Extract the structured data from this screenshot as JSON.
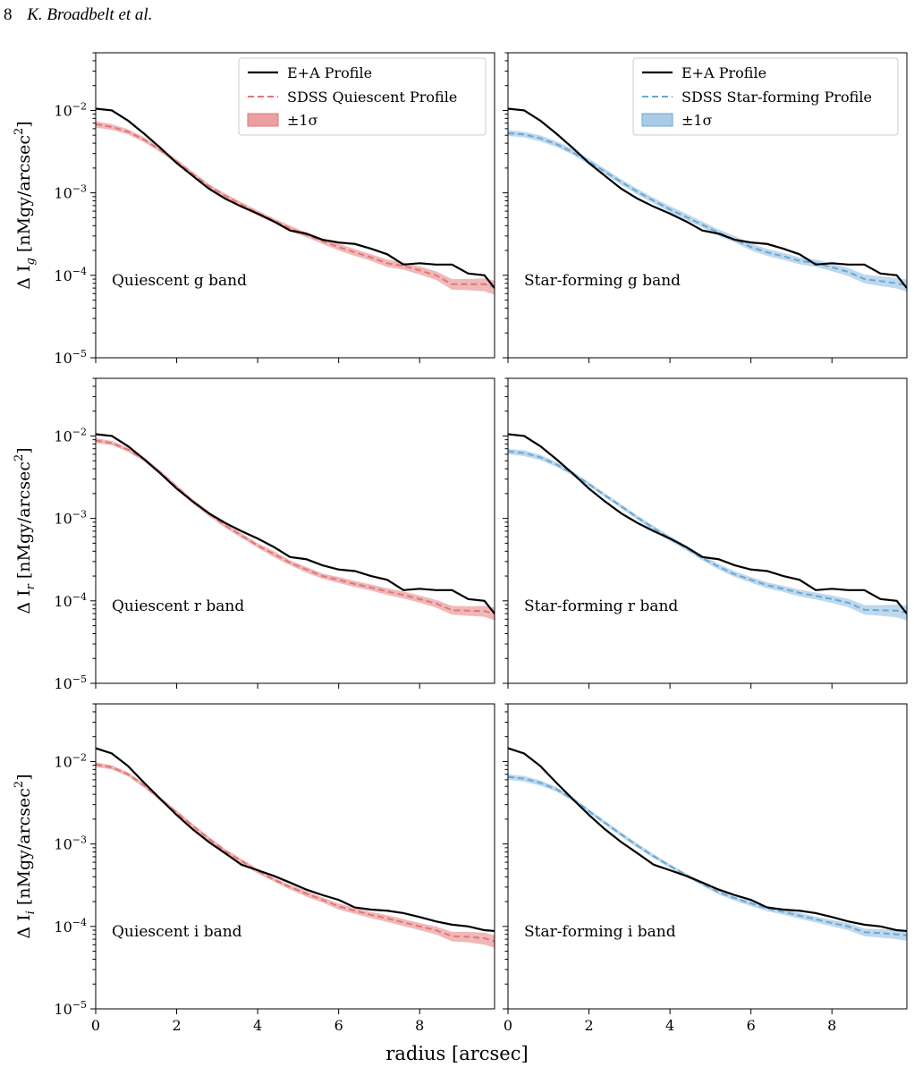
{
  "header": {
    "page_number": "8",
    "authors": "K. Broadbelt et al."
  },
  "figure": {
    "xlabel": "radius [arcsec]",
    "x_ticks": [
      0,
      2,
      4,
      6,
      8
    ],
    "xlim": [
      0,
      9.85
    ],
    "y_scale": "log",
    "ylim": [
      1e-05,
      0.05
    ],
    "y_ticks": [
      {
        "value": 1e-05,
        "base": "10",
        "exp": "−5"
      },
      {
        "value": 0.0001,
        "base": "10",
        "exp": "−4"
      },
      {
        "value": 0.001,
        "base": "10",
        "exp": "−3"
      },
      {
        "value": 0.01,
        "base": "10",
        "exp": "−2"
      }
    ],
    "row_ylabels": [
      {
        "prefix": "Δ I",
        "sub": "g",
        "suffix": " [nMgy/arcsec",
        "sup": "2",
        "end": "]"
      },
      {
        "prefix": "Δ I",
        "sub": "r",
        "suffix": " [nMgy/arcsec",
        "sup": "2",
        "end": "]"
      },
      {
        "prefix": "Δ I",
        "sub": "i",
        "suffix": " [nMgy/arcsec",
        "sup": "2",
        "end": "]"
      }
    ],
    "legends": [
      {
        "placement": "top-right",
        "entries": [
          "E+A Profile",
          "SDSS Quiescent Profile",
          "±1σ"
        ]
      },
      {
        "placement": "top-right",
        "entries": [
          "E+A Profile",
          "SDSS Star-forming Profile",
          "±1σ"
        ]
      }
    ],
    "colors": {
      "ea": "#000000",
      "quiescent": "#e07777",
      "quiescent_band": "#eba0a0",
      "starforming": "#6ba8d0",
      "starforming_band": "#a8cbe8"
    }
  },
  "chart_data": [
    {
      "type": "line",
      "annotation": "Quiescent g band",
      "row": 0,
      "col": 0,
      "x": [
        0,
        0.4,
        0.8,
        1.2,
        1.6,
        2.0,
        2.4,
        2.8,
        3.2,
        3.6,
        4.0,
        4.4,
        4.8,
        5.2,
        5.6,
        6.0,
        6.4,
        6.8,
        7.2,
        7.6,
        8.0,
        8.4,
        8.8,
        9.2,
        9.6,
        9.85
      ],
      "series": [
        {
          "name": "E+A Profile",
          "values": [
            0.0105,
            0.01,
            0.0075,
            0.0052,
            0.0035,
            0.0023,
            0.0016,
            0.00112,
            0.00085,
            0.00068,
            0.00056,
            0.00045,
            0.00035,
            0.00032,
            0.00027,
            0.00025,
            0.00024,
            0.00021,
            0.00018,
            0.000135,
            0.00014,
            0.000135,
            0.000135,
            0.000105,
            0.0001,
            7e-05
          ]
        },
        {
          "name": "SDSS Quiescent Profile",
          "values": [
            0.0068,
            0.0063,
            0.0055,
            0.0044,
            0.0033,
            0.0024,
            0.0017,
            0.0012,
            0.00092,
            0.00072,
            0.00057,
            0.00046,
            0.00037,
            0.00031,
            0.00026,
            0.00022,
            0.00019,
            0.000165,
            0.00014,
            0.00013,
            0.000115,
            0.0001,
            7.8e-05,
            7.8e-05,
            7.8e-05,
            7.2e-05
          ],
          "lower": [
            0.0062,
            0.0058,
            0.0051,
            0.0041,
            0.0031,
            0.00225,
            0.0016,
            0.00113,
            0.00086,
            0.00067,
            0.00053,
            0.00043,
            0.00034,
            0.00029,
            0.00024,
            0.0002,
            0.000172,
            0.00015,
            0.000126,
            0.000117,
            0.000102,
            8.8e-05,
            6.7e-05,
            6.6e-05,
            6.4e-05,
            5.8e-05
          ],
          "upper": [
            0.0074,
            0.0068,
            0.0059,
            0.0047,
            0.0035,
            0.00255,
            0.0018,
            0.00127,
            0.00098,
            0.00077,
            0.00061,
            0.00049,
            0.0004,
            0.00033,
            0.00028,
            0.000242,
            0.000208,
            0.00018,
            0.000155,
            0.000143,
            0.000128,
            0.000112,
            9e-05,
            9e-05,
            9.2e-05,
            8.6e-05
          ]
        }
      ]
    },
    {
      "type": "line",
      "annotation": "Star-forming g band",
      "row": 0,
      "col": 1,
      "x": [
        0,
        0.4,
        0.8,
        1.2,
        1.6,
        2.0,
        2.4,
        2.8,
        3.2,
        3.6,
        4.0,
        4.4,
        4.8,
        5.2,
        5.6,
        6.0,
        6.4,
        6.8,
        7.2,
        7.6,
        8.0,
        8.4,
        8.8,
        9.2,
        9.6,
        9.85
      ],
      "series": [
        {
          "name": "E+A Profile",
          "values": [
            0.0105,
            0.01,
            0.0075,
            0.0052,
            0.0035,
            0.0023,
            0.0016,
            0.00112,
            0.00085,
            0.00068,
            0.00056,
            0.00045,
            0.00035,
            0.00032,
            0.00027,
            0.00025,
            0.00024,
            0.00021,
            0.00018,
            0.000135,
            0.00014,
            0.000135,
            0.000135,
            0.000105,
            0.0001,
            7e-05
          ]
        },
        {
          "name": "SDSS Star-forming Profile",
          "values": [
            0.0053,
            0.0051,
            0.0046,
            0.0039,
            0.0031,
            0.0024,
            0.0018,
            0.00135,
            0.00103,
            0.0008,
            0.00063,
            0.00051,
            0.00041,
            0.00033,
            0.00027,
            0.00022,
            0.00019,
            0.00017,
            0.00015,
            0.00014,
            0.000125,
            0.00011,
            9e-05,
            8.5e-05,
            8e-05,
            7.5e-05
          ],
          "lower": [
            0.0049,
            0.0047,
            0.0042,
            0.0036,
            0.0029,
            0.0022,
            0.00167,
            0.00125,
            0.00095,
            0.00074,
            0.00058,
            0.00047,
            0.00038,
            0.0003,
            0.00025,
            0.0002,
            0.000172,
            0.000154,
            0.000136,
            0.000126,
            0.000112,
            9.8e-05,
            8e-05,
            7.4e-05,
            6.9e-05,
            6.3e-05
          ],
          "upper": [
            0.0058,
            0.0055,
            0.005,
            0.0042,
            0.0034,
            0.0026,
            0.00195,
            0.00146,
            0.00112,
            0.00087,
            0.00069,
            0.00056,
            0.00045,
            0.00036,
            0.0003,
            0.000242,
            0.000209,
            0.000187,
            0.000165,
            0.000155,
            0.000139,
            0.000123,
            0.000102,
            9.7e-05,
            9.3e-05,
            8.9e-05
          ]
        }
      ]
    },
    {
      "type": "line",
      "annotation": "Quiescent r band",
      "row": 1,
      "col": 0,
      "x": [
        0,
        0.4,
        0.8,
        1.2,
        1.6,
        2.0,
        2.4,
        2.8,
        3.2,
        3.6,
        4.0,
        4.4,
        4.8,
        5.2,
        5.6,
        6.0,
        6.4,
        6.8,
        7.2,
        7.6,
        8.0,
        8.4,
        8.8,
        9.2,
        9.6,
        9.85
      ],
      "series": [
        {
          "name": "E+A Profile",
          "values": [
            0.0105,
            0.01,
            0.0075,
            0.0052,
            0.0035,
            0.0023,
            0.0016,
            0.00115,
            0.00088,
            0.0007,
            0.00057,
            0.00045,
            0.00034,
            0.00032,
            0.00027,
            0.00024,
            0.00023,
            0.0002,
            0.00018,
            0.000135,
            0.00014,
            0.000135,
            0.000135,
            0.000105,
            0.0001,
            7e-05
          ]
        },
        {
          "name": "SDSS Quiescent Profile",
          "values": [
            0.0088,
            0.0082,
            0.0068,
            0.0052,
            0.0036,
            0.0024,
            0.0016,
            0.00113,
            0.00082,
            0.00062,
            0.00047,
            0.00037,
            0.00029,
            0.00024,
            0.0002,
            0.00018,
            0.00016,
            0.000145,
            0.00013,
            0.000118,
            0.000105,
            9.3e-05,
            7.7e-05,
            7.6e-05,
            7.5e-05,
            7e-05
          ],
          "lower": [
            0.0082,
            0.0077,
            0.0064,
            0.0049,
            0.0034,
            0.00226,
            0.0015,
            0.00106,
            0.00077,
            0.00058,
            0.00044,
            0.00034,
            0.00027,
            0.00022,
            0.000185,
            0.000165,
            0.000147,
            0.000133,
            0.000118,
            0.000107,
            9.5e-05,
            8.3e-05,
            6.8e-05,
            6.6e-05,
            6.4e-05,
            5.8e-05
          ],
          "upper": [
            0.0094,
            0.0087,
            0.0072,
            0.0055,
            0.0038,
            0.00255,
            0.0017,
            0.0012,
            0.00087,
            0.00066,
            0.0005,
            0.0004,
            0.00031,
            0.000258,
            0.000215,
            0.000195,
            0.000174,
            0.000158,
            0.000142,
            0.00013,
            0.000116,
            0.000103,
            8.7e-05,
            8.6e-05,
            8.7e-05,
            8.3e-05
          ]
        }
      ]
    },
    {
      "type": "line",
      "annotation": "Star-forming r band",
      "row": 1,
      "col": 1,
      "x": [
        0,
        0.4,
        0.8,
        1.2,
        1.6,
        2.0,
        2.4,
        2.8,
        3.2,
        3.6,
        4.0,
        4.4,
        4.8,
        5.2,
        5.6,
        6.0,
        6.4,
        6.8,
        7.2,
        7.6,
        8.0,
        8.4,
        8.8,
        9.2,
        9.6,
        9.85
      ],
      "series": [
        {
          "name": "E+A Profile",
          "values": [
            0.0105,
            0.01,
            0.0075,
            0.0052,
            0.0035,
            0.0023,
            0.0016,
            0.00115,
            0.00088,
            0.0007,
            0.00057,
            0.00045,
            0.00034,
            0.00032,
            0.00027,
            0.00024,
            0.00023,
            0.0002,
            0.00018,
            0.000135,
            0.00014,
            0.000135,
            0.000135,
            0.000105,
            0.0001,
            7e-05
          ]
        },
        {
          "name": "SDSS Star-forming Profile",
          "values": [
            0.0065,
            0.0062,
            0.0055,
            0.0045,
            0.0035,
            0.0026,
            0.0019,
            0.0014,
            0.00102,
            0.00076,
            0.00057,
            0.00044,
            0.00033,
            0.00026,
            0.00021,
            0.00018,
            0.000155,
            0.00014,
            0.000125,
            0.000115,
            0.000105,
            9.5e-05,
            7.8e-05,
            7.7e-05,
            7.6e-05,
            7.2e-05
          ],
          "lower": [
            0.006,
            0.0057,
            0.0051,
            0.0042,
            0.0033,
            0.00245,
            0.0018,
            0.00132,
            0.00096,
            0.00071,
            0.00053,
            0.00041,
            0.00031,
            0.00024,
            0.000195,
            0.000166,
            0.000142,
            0.000128,
            0.000113,
            0.000104,
            9.4e-05,
            8.4e-05,
            6.8e-05,
            6.6e-05,
            6.3e-05,
            5.8e-05
          ],
          "upper": [
            0.007,
            0.0067,
            0.0059,
            0.0048,
            0.0037,
            0.00275,
            0.002,
            0.00148,
            0.00108,
            0.00081,
            0.00061,
            0.00047,
            0.00036,
            0.00028,
            0.000228,
            0.000195,
            0.000168,
            0.000152,
            0.000137,
            0.000126,
            0.000116,
            0.000106,
            8.9e-05,
            8.9e-05,
            9e-05,
            8.7e-05
          ]
        }
      ]
    },
    {
      "type": "line",
      "annotation": "Quiescent i band",
      "row": 2,
      "col": 0,
      "x": [
        0,
        0.4,
        0.8,
        1.2,
        1.6,
        2.0,
        2.4,
        2.8,
        3.2,
        3.6,
        4.0,
        4.4,
        4.8,
        5.2,
        5.6,
        6.0,
        6.4,
        6.8,
        7.2,
        7.6,
        8.0,
        8.4,
        8.8,
        9.2,
        9.6,
        9.85
      ],
      "series": [
        {
          "name": "E+A Profile",
          "values": [
            0.0145,
            0.0125,
            0.0088,
            0.0055,
            0.0035,
            0.00225,
            0.0015,
            0.00105,
            0.00077,
            0.00056,
            0.00048,
            0.00041,
            0.00034,
            0.00028,
            0.00024,
            0.00021,
            0.00017,
            0.00016,
            0.000155,
            0.000145,
            0.00013,
            0.000115,
            0.000105,
            0.0001,
            9e-05,
            8.8e-05
          ]
        },
        {
          "name": "SDSS Quiescent Profile",
          "values": [
            0.0092,
            0.0085,
            0.007,
            0.0051,
            0.0035,
            0.0024,
            0.00165,
            0.00115,
            0.00082,
            0.00062,
            0.00047,
            0.00037,
            0.0003,
            0.00025,
            0.00021,
            0.000175,
            0.000155,
            0.000138,
            0.000125,
            0.000112,
            0.0001,
            9e-05,
            7.6e-05,
            7.5e-05,
            7.2e-05,
            6.6e-05
          ],
          "lower": [
            0.0086,
            0.008,
            0.0066,
            0.0048,
            0.0033,
            0.00226,
            0.00155,
            0.00108,
            0.00077,
            0.00058,
            0.00044,
            0.00035,
            0.00028,
            0.00023,
            0.000195,
            0.00016,
            0.000142,
            0.000126,
            0.000113,
            0.000101,
            9e-05,
            8e-05,
            6.6e-05,
            6.4e-05,
            6e-05,
            5.5e-05
          ],
          "upper": [
            0.0098,
            0.009,
            0.0074,
            0.0054,
            0.0037,
            0.00255,
            0.00175,
            0.00122,
            0.00087,
            0.00066,
            0.0005,
            0.00039,
            0.00032,
            0.00027,
            0.000225,
            0.00019,
            0.000168,
            0.00015,
            0.000137,
            0.000123,
            0.00011,
            0.0001,
            8.6e-05,
            8.6e-05,
            8.4e-05,
            7.8e-05
          ]
        }
      ]
    },
    {
      "type": "line",
      "annotation": "Star-forming i band",
      "row": 2,
      "col": 1,
      "x": [
        0,
        0.4,
        0.8,
        1.2,
        1.6,
        2.0,
        2.4,
        2.8,
        3.2,
        3.6,
        4.0,
        4.4,
        4.8,
        5.2,
        5.6,
        6.0,
        6.4,
        6.8,
        7.2,
        7.6,
        8.0,
        8.4,
        8.8,
        9.2,
        9.6,
        9.85
      ],
      "series": [
        {
          "name": "E+A Profile",
          "values": [
            0.0145,
            0.0125,
            0.0088,
            0.0055,
            0.0035,
            0.00225,
            0.0015,
            0.00105,
            0.00077,
            0.00056,
            0.00048,
            0.00041,
            0.00034,
            0.00028,
            0.00024,
            0.00021,
            0.00017,
            0.00016,
            0.000155,
            0.000145,
            0.00013,
            0.000115,
            0.000105,
            0.0001,
            9e-05,
            8.8e-05
          ]
        },
        {
          "name": "SDSS Star-forming Profile",
          "values": [
            0.0065,
            0.0062,
            0.0055,
            0.0046,
            0.0035,
            0.0025,
            0.0018,
            0.0013,
            0.00095,
            0.00071,
            0.00054,
            0.00042,
            0.00033,
            0.00026,
            0.00022,
            0.00019,
            0.000165,
            0.00015,
            0.000135,
            0.000122,
            0.00011,
            0.0001,
            8.5e-05,
            8.3e-05,
            8e-05,
            7.8e-05
          ],
          "lower": [
            0.006,
            0.0057,
            0.0051,
            0.0043,
            0.0033,
            0.00235,
            0.0017,
            0.00122,
            0.00089,
            0.00067,
            0.00051,
            0.0004,
            0.00031,
            0.000245,
            0.000205,
            0.000176,
            0.000153,
            0.000139,
            0.000124,
            0.000112,
            0.0001,
            9e-05,
            7.6e-05,
            7.3e-05,
            7e-05,
            6.7e-05
          ],
          "upper": [
            0.007,
            0.0067,
            0.0059,
            0.0049,
            0.0037,
            0.00265,
            0.0019,
            0.00138,
            0.00101,
            0.00075,
            0.00057,
            0.00044,
            0.00035,
            0.000275,
            0.000235,
            0.000204,
            0.000177,
            0.000161,
            0.000146,
            0.000132,
            0.00012,
            0.00011,
            9.4e-05,
            9.3e-05,
            9e-05,
            8.9e-05
          ]
        }
      ]
    }
  ]
}
